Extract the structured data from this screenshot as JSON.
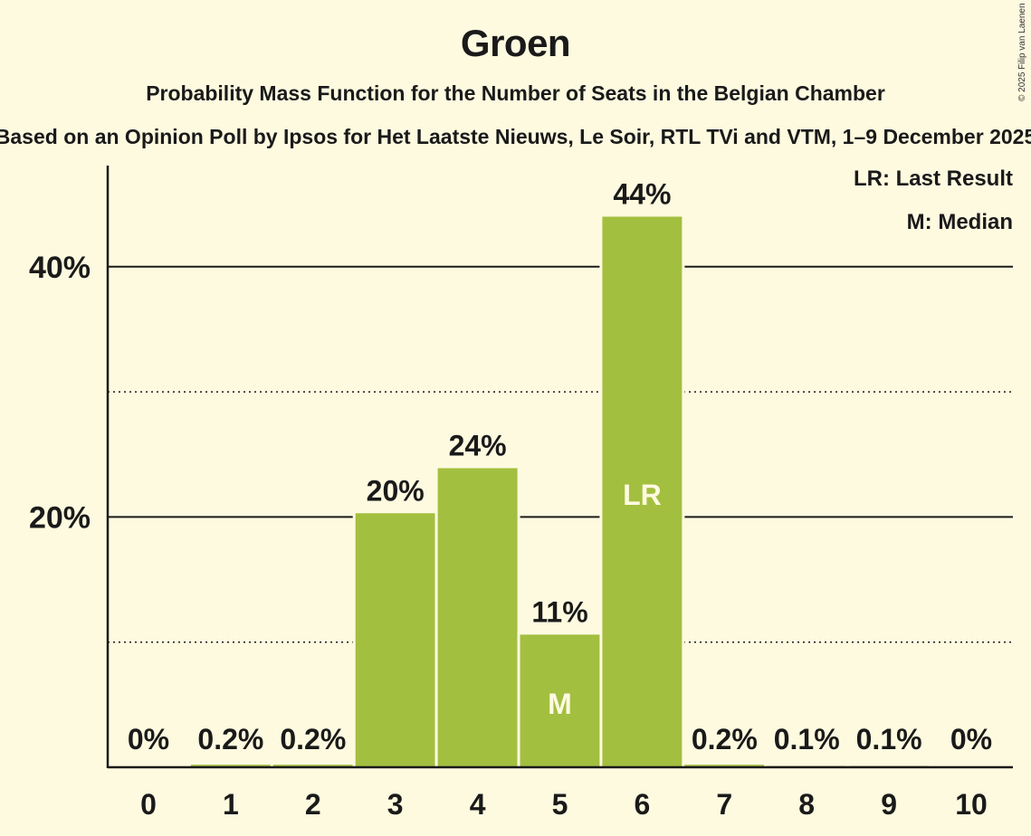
{
  "header": {
    "title": "Groen",
    "subtitle": "Probability Mass Function for the Number of Seats in the Belgian Chamber",
    "subsubtitle": "Based on an Opinion Poll by Ipsos for Het Laatste Nieuws, Le Soir, RTL TVi and VTM, 1–9 December 2025",
    "copyright": "© 2025 Filip van Laenen"
  },
  "legend": {
    "lr": "LR: Last Result",
    "m": "M: Median"
  },
  "colors": {
    "background": "#fefae0",
    "bar": "#a3bf40",
    "text": "#1a1a1a",
    "bar_label": "#fefae0"
  },
  "chart_data": {
    "type": "bar",
    "title": "Groen",
    "subtitle": "Probability Mass Function for the Number of Seats in the Belgian Chamber",
    "xlabel": "",
    "ylabel": "",
    "categories": [
      "0",
      "1",
      "2",
      "3",
      "4",
      "5",
      "6",
      "7",
      "8",
      "9",
      "10"
    ],
    "values": [
      0,
      0.2,
      0.2,
      20.3,
      23.9,
      10.6,
      44.0,
      0.2,
      0.1,
      0.1,
      0
    ],
    "value_labels": [
      "0%",
      "0.2%",
      "0.2%",
      "20%",
      "24%",
      "11%",
      "44%",
      "0.2%",
      "0.1%",
      "0.1%",
      "0%"
    ],
    "bar_annotations": {
      "5": "M",
      "6": "LR"
    },
    "y_ticks": [
      "20%",
      "40%"
    ],
    "y_tick_values": [
      20,
      40
    ],
    "minor_gridlines": [
      10,
      30
    ],
    "ylim": [
      0,
      48
    ],
    "grid": true,
    "legend_position": "top-right",
    "legend": [
      "LR: Last Result",
      "M: Median"
    ]
  }
}
